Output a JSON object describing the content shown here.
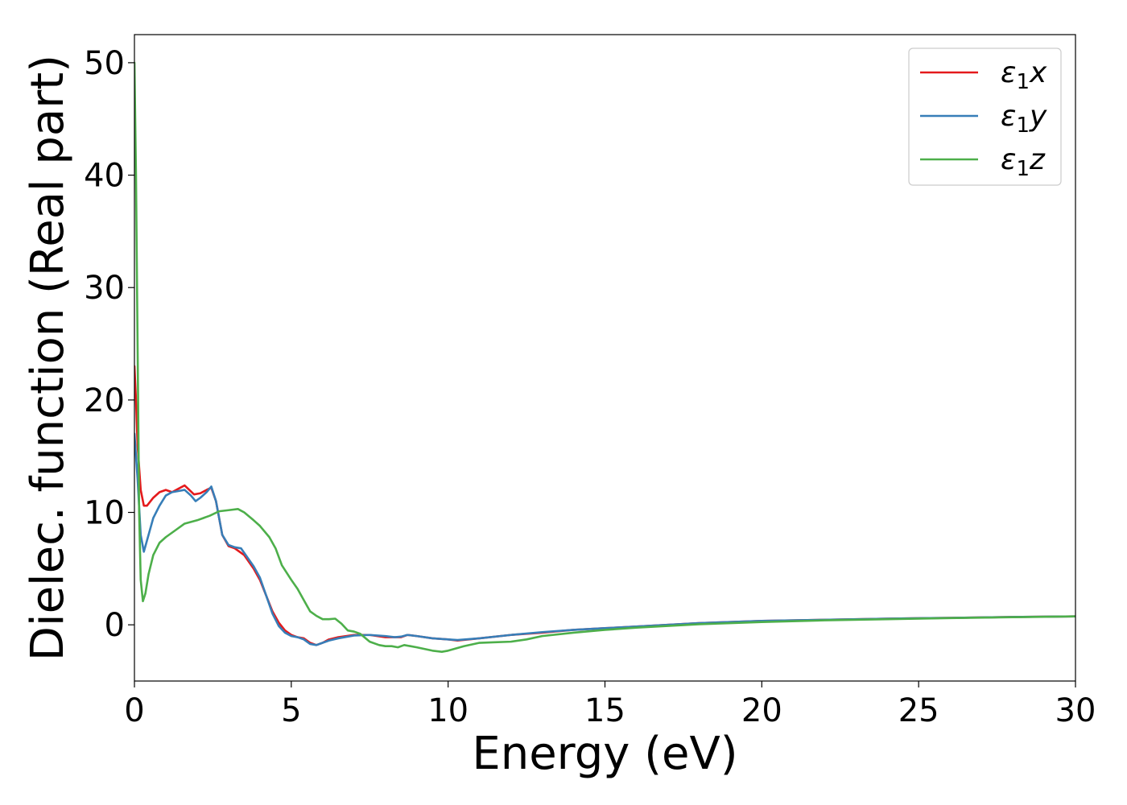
{
  "chart_data": {
    "type": "line",
    "title": "",
    "xlabel": "Energy (eV)",
    "ylabel": "Dielec. function (Real part)",
    "xlim": [
      0,
      30
    ],
    "ylim": [
      -5,
      52.5
    ],
    "xticks": [
      "0",
      "5",
      "10",
      "15",
      "20",
      "25",
      "30"
    ],
    "yticks": [
      "0",
      "10",
      "20",
      "30",
      "40",
      "50"
    ],
    "grid": false,
    "legend_position": "top-right",
    "series": [
      {
        "name": "ε1x",
        "legend_base": "ε",
        "legend_sub": "1",
        "legend_suffix": "x",
        "color": "#e41a1c",
        "points": [
          [
            0,
            23
          ],
          [
            0.05,
            20
          ],
          [
            0.1,
            16
          ],
          [
            0.2,
            12
          ],
          [
            0.3,
            10.6
          ],
          [
            0.4,
            10.6
          ],
          [
            0.6,
            11.3
          ],
          [
            0.8,
            11.8
          ],
          [
            1.0,
            12.0
          ],
          [
            1.2,
            11.8
          ],
          [
            1.4,
            12.1
          ],
          [
            1.6,
            12.4
          ],
          [
            1.75,
            12.0
          ],
          [
            1.9,
            11.6
          ],
          [
            2.1,
            11.7
          ],
          [
            2.3,
            12.0
          ],
          [
            2.45,
            12.2
          ],
          [
            2.6,
            11.0
          ],
          [
            2.8,
            8.0
          ],
          [
            3.0,
            7.0
          ],
          [
            3.2,
            6.8
          ],
          [
            3.5,
            6.2
          ],
          [
            3.8,
            5.0
          ],
          [
            4.0,
            4.0
          ],
          [
            4.2,
            2.6
          ],
          [
            4.4,
            1.2
          ],
          [
            4.6,
            0.2
          ],
          [
            4.8,
            -0.5
          ],
          [
            5.0,
            -0.9
          ],
          [
            5.2,
            -1.1
          ],
          [
            5.4,
            -1.2
          ],
          [
            5.6,
            -1.6
          ],
          [
            5.8,
            -1.8
          ],
          [
            6.0,
            -1.6
          ],
          [
            6.2,
            -1.3
          ],
          [
            6.5,
            -1.1
          ],
          [
            7.0,
            -0.9
          ],
          [
            7.5,
            -0.9
          ],
          [
            8.0,
            -1.1
          ],
          [
            8.3,
            -1.1
          ],
          [
            8.5,
            -1.1
          ],
          [
            8.7,
            -0.9
          ],
          [
            9.0,
            -1.0
          ],
          [
            9.5,
            -1.2
          ],
          [
            10.0,
            -1.3
          ],
          [
            10.3,
            -1.4
          ],
          [
            11.0,
            -1.2
          ],
          [
            12.0,
            -0.9
          ],
          [
            13.0,
            -0.7
          ],
          [
            14.0,
            -0.45
          ],
          [
            15.0,
            -0.3
          ],
          [
            16.0,
            -0.15
          ],
          [
            17.0,
            0.0
          ],
          [
            18.0,
            0.15
          ],
          [
            19.0,
            0.25
          ],
          [
            20.0,
            0.35
          ],
          [
            22.0,
            0.45
          ],
          [
            24.0,
            0.55
          ],
          [
            26.0,
            0.62
          ],
          [
            28.0,
            0.7
          ],
          [
            30.0,
            0.75
          ]
        ]
      },
      {
        "name": "ε1y",
        "legend_base": "ε",
        "legend_sub": "1",
        "legend_suffix": "y",
        "color": "#377eb8",
        "points": [
          [
            0,
            17
          ],
          [
            0.1,
            13
          ],
          [
            0.2,
            8
          ],
          [
            0.3,
            6.5
          ],
          [
            0.4,
            7.5
          ],
          [
            0.6,
            9.5
          ],
          [
            0.8,
            10.6
          ],
          [
            1.0,
            11.5
          ],
          [
            1.2,
            11.8
          ],
          [
            1.4,
            11.9
          ],
          [
            1.6,
            12.0
          ],
          [
            1.8,
            11.5
          ],
          [
            1.95,
            11.0
          ],
          [
            2.1,
            11.3
          ],
          [
            2.3,
            11.8
          ],
          [
            2.45,
            12.3
          ],
          [
            2.6,
            11.0
          ],
          [
            2.8,
            8.0
          ],
          [
            3.0,
            7.1
          ],
          [
            3.2,
            6.9
          ],
          [
            3.4,
            6.8
          ],
          [
            3.6,
            6.0
          ],
          [
            3.8,
            5.2
          ],
          [
            4.0,
            4.2
          ],
          [
            4.2,
            2.6
          ],
          [
            4.4,
            1.0
          ],
          [
            4.6,
            -0.1
          ],
          [
            4.8,
            -0.7
          ],
          [
            5.0,
            -1.0
          ],
          [
            5.2,
            -1.1
          ],
          [
            5.4,
            -1.3
          ],
          [
            5.6,
            -1.7
          ],
          [
            5.8,
            -1.8
          ],
          [
            6.0,
            -1.6
          ],
          [
            6.2,
            -1.4
          ],
          [
            6.5,
            -1.2
          ],
          [
            7.0,
            -0.95
          ],
          [
            7.5,
            -0.9
          ],
          [
            8.0,
            -1.0
          ],
          [
            8.3,
            -1.1
          ],
          [
            8.5,
            -1.05
          ],
          [
            8.7,
            -0.9
          ],
          [
            9.0,
            -1.0
          ],
          [
            9.5,
            -1.2
          ],
          [
            10.0,
            -1.3
          ],
          [
            10.3,
            -1.35
          ],
          [
            11.0,
            -1.2
          ],
          [
            12.0,
            -0.9
          ],
          [
            13.0,
            -0.65
          ],
          [
            14.0,
            -0.45
          ],
          [
            15.0,
            -0.3
          ],
          [
            16.0,
            -0.15
          ],
          [
            17.0,
            0.0
          ],
          [
            18.0,
            0.15
          ],
          [
            19.0,
            0.25
          ],
          [
            20.0,
            0.35
          ],
          [
            22.0,
            0.45
          ],
          [
            24.0,
            0.55
          ],
          [
            26.0,
            0.62
          ],
          [
            28.0,
            0.7
          ],
          [
            30.0,
            0.75
          ]
        ]
      },
      {
        "name": "ε1z",
        "legend_base": "ε",
        "legend_sub": "1",
        "legend_suffix": "z",
        "color": "#4daf4a",
        "points": [
          [
            0,
            50
          ],
          [
            0.05,
            40
          ],
          [
            0.1,
            25
          ],
          [
            0.15,
            10
          ],
          [
            0.2,
            4
          ],
          [
            0.27,
            2.1
          ],
          [
            0.35,
            2.8
          ],
          [
            0.45,
            4.5
          ],
          [
            0.6,
            6.2
          ],
          [
            0.8,
            7.3
          ],
          [
            1.0,
            7.8
          ],
          [
            1.3,
            8.4
          ],
          [
            1.6,
            9.0
          ],
          [
            2.0,
            9.3
          ],
          [
            2.4,
            9.7
          ],
          [
            2.7,
            10.1
          ],
          [
            3.0,
            10.2
          ],
          [
            3.3,
            10.3
          ],
          [
            3.5,
            10.0
          ],
          [
            3.8,
            9.3
          ],
          [
            4.0,
            8.8
          ],
          [
            4.3,
            7.8
          ],
          [
            4.5,
            6.8
          ],
          [
            4.7,
            5.3
          ],
          [
            5.0,
            4.0
          ],
          [
            5.2,
            3.2
          ],
          [
            5.4,
            2.2
          ],
          [
            5.6,
            1.2
          ],
          [
            5.8,
            0.8
          ],
          [
            6.0,
            0.5
          ],
          [
            6.2,
            0.5
          ],
          [
            6.4,
            0.55
          ],
          [
            6.6,
            0.1
          ],
          [
            6.8,
            -0.5
          ],
          [
            7.0,
            -0.6
          ],
          [
            7.2,
            -0.8
          ],
          [
            7.5,
            -1.5
          ],
          [
            7.8,
            -1.8
          ],
          [
            8.0,
            -1.9
          ],
          [
            8.2,
            -1.9
          ],
          [
            8.4,
            -2.0
          ],
          [
            8.6,
            -1.8
          ],
          [
            8.8,
            -1.9
          ],
          [
            9.0,
            -2.0
          ],
          [
            9.5,
            -2.3
          ],
          [
            9.8,
            -2.4
          ],
          [
            10.0,
            -2.3
          ],
          [
            10.5,
            -1.9
          ],
          [
            11.0,
            -1.6
          ],
          [
            11.5,
            -1.55
          ],
          [
            12.0,
            -1.5
          ],
          [
            12.5,
            -1.3
          ],
          [
            13.0,
            -1.0
          ],
          [
            14.0,
            -0.7
          ],
          [
            15.0,
            -0.45
          ],
          [
            16.0,
            -0.25
          ],
          [
            17.0,
            -0.1
          ],
          [
            18.0,
            0.05
          ],
          [
            19.0,
            0.15
          ],
          [
            20.0,
            0.25
          ],
          [
            22.0,
            0.4
          ],
          [
            24.0,
            0.5
          ],
          [
            26.0,
            0.6
          ],
          [
            28.0,
            0.68
          ],
          [
            30.0,
            0.75
          ]
        ]
      }
    ]
  }
}
